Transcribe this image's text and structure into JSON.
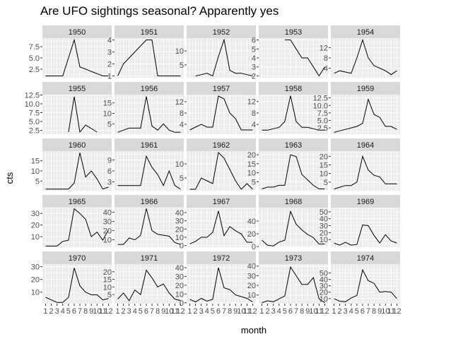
{
  "chart_data": {
    "type": "line",
    "title": "Are UFO sightings seasonal? Apparently yes",
    "xlabel": "month",
    "ylabel": "cts",
    "x_ticks": [
      1,
      2,
      3,
      4,
      5,
      6,
      7,
      8,
      9,
      10,
      11,
      12
    ],
    "x_tick_labels": [
      "1",
      "2",
      "3",
      "4",
      "5",
      "6",
      "7",
      "8",
      "9",
      "10",
      "11",
      "12"
    ],
    "xlim": [
      0.45,
      12.55
    ],
    "grid": true,
    "facet_by": "year",
    "layout": {
      "rows": 5,
      "cols": 5
    },
    "panels": [
      {
        "label": "1950",
        "y_ticks": [
          2.5,
          5.0,
          7.5
        ],
        "y_tick_labels": [
          "2.5",
          "5.0",
          "7.5"
        ],
        "ylim": [
          0.6,
          9.4
        ],
        "x": [
          1,
          2,
          3,
          4,
          5,
          6,
          7,
          8,
          9,
          10,
          11,
          12
        ],
        "y": [
          1,
          1,
          1,
          1,
          5,
          9,
          3,
          2.5,
          2,
          1.5,
          1,
          1
        ]
      },
      {
        "label": "1951",
        "y_ticks": [
          1,
          2,
          3,
          4
        ],
        "y_tick_labels": [
          "1",
          "2",
          "3",
          "4"
        ],
        "ylim": [
          0.85,
          4.15
        ],
        "x": [
          1,
          2,
          3,
          4,
          5,
          6,
          7,
          8,
          9,
          10,
          11,
          12
        ],
        "y": [
          1,
          2,
          2.5,
          3,
          3.5,
          4,
          4,
          1,
          1,
          1,
          1,
          1
        ]
      },
      {
        "label": "1952",
        "y_ticks": [
          5,
          10
        ],
        "y_tick_labels": [
          "5",
          "10"
        ],
        "ylim": [
          0.4,
          14.6
        ],
        "x": [
          2,
          3,
          4,
          5,
          6,
          7,
          8,
          9,
          10,
          11,
          12
        ],
        "y": [
          1,
          1.5,
          2,
          1,
          8,
          14,
          3,
          2,
          2,
          1.5,
          1
        ]
      },
      {
        "label": "1953",
        "y_ticks": [
          2,
          3,
          4,
          5,
          6
        ],
        "y_tick_labels": [
          "2",
          "3",
          "4",
          "5",
          "6"
        ],
        "ylim": [
          1.8,
          6.2
        ],
        "x": [
          5,
          6,
          7,
          8,
          9,
          10,
          11,
          12
        ],
        "y": [
          6,
          6,
          5,
          4,
          4,
          3,
          2,
          3
        ]
      },
      {
        "label": "1954",
        "y_ticks": [
          4,
          8,
          12
        ],
        "y_tick_labels": [
          "4",
          "8",
          "12"
        ],
        "ylim": [
          0.3,
          15.7
        ],
        "x": [
          1,
          2,
          3,
          4,
          5,
          6,
          7,
          8,
          9,
          10,
          11,
          12
        ],
        "y": [
          2,
          3,
          2.5,
          2,
          8,
          15,
          8,
          5,
          4,
          3,
          1.5,
          3
        ]
      },
      {
        "label": "1955",
        "y_ticks": [
          2.5,
          5.0,
          7.5,
          10.0,
          12.5
        ],
        "y_tick_labels": [
          "2.5",
          "5.0",
          "7.5",
          "10.0",
          "12.5"
        ],
        "ylim": [
          1.4,
          12.6
        ],
        "x": [
          5,
          6,
          7,
          8,
          9,
          10
        ],
        "y": [
          2,
          12,
          2,
          4,
          3,
          2
        ]
      },
      {
        "label": "1956",
        "y_ticks": [
          5,
          10,
          15
        ],
        "y_tick_labels": [
          "5",
          "10",
          "15"
        ],
        "ylim": [
          0.1,
          18.9
        ],
        "x": [
          1,
          2,
          3,
          4,
          5,
          6,
          7,
          8,
          9,
          10,
          11,
          12
        ],
        "y": [
          1,
          2,
          3,
          3,
          3,
          18,
          4,
          2,
          5,
          2,
          1,
          1
        ]
      },
      {
        "label": "1957",
        "y_ticks": [
          4,
          8,
          12
        ],
        "y_tick_labels": [
          "4",
          "8",
          "12"
        ],
        "ylim": [
          0.5,
          14.5
        ],
        "x": [
          1,
          2,
          3,
          4,
          5,
          6,
          7,
          8,
          9,
          10,
          11,
          12
        ],
        "y": [
          2,
          3,
          4,
          3,
          3,
          14,
          13,
          8,
          6,
          2,
          2,
          2
        ]
      },
      {
        "label": "1958",
        "y_ticks": [
          4,
          8,
          12
        ],
        "y_tick_labels": [
          "4",
          "8",
          "12"
        ],
        "ylim": [
          0.6,
          14.4
        ],
        "x": [
          1,
          2,
          3,
          4,
          5,
          6,
          7,
          8,
          9,
          10,
          11,
          12
        ],
        "y": [
          2,
          2,
          2.5,
          3,
          5,
          14,
          5,
          3,
          3,
          2.5,
          2,
          2
        ]
      },
      {
        "label": "1959",
        "y_ticks": [
          2.5,
          5.0,
          7.5,
          10.0,
          12.5
        ],
        "y_tick_labels": [
          "2.5",
          "5.0",
          "7.5",
          "10.0",
          "12.5"
        ],
        "ylim": [
          0.4,
          13.6
        ],
        "x": [
          1,
          2,
          3,
          4,
          5,
          6,
          7,
          8,
          9,
          10,
          11,
          12
        ],
        "y": [
          1,
          1.5,
          2,
          2.5,
          3,
          4,
          12,
          7,
          6,
          3,
          3,
          2
        ]
      },
      {
        "label": "1960",
        "y_ticks": [
          5,
          10,
          15
        ],
        "y_tick_labels": [
          "5",
          "10",
          "15"
        ],
        "ylim": [
          0.2,
          19.8
        ],
        "x": [
          1,
          2,
          3,
          4,
          5,
          6,
          7,
          8,
          9,
          10,
          11,
          12
        ],
        "y": [
          1,
          1,
          1,
          1,
          1,
          4,
          19,
          7,
          10,
          6,
          1,
          2
        ]
      },
      {
        "label": "1961",
        "y_ticks": [
          3,
          6,
          9
        ],
        "y_tick_labels": [
          "3",
          "6",
          "9"
        ],
        "ylim": [
          0.6,
          11.4
        ],
        "x": [
          1,
          2,
          3,
          4,
          5,
          6,
          7,
          8,
          9,
          10,
          11,
          12
        ],
        "y": [
          2,
          2,
          2,
          2,
          2,
          10,
          7,
          5,
          2,
          6,
          2,
          1
        ]
      },
      {
        "label": "1962",
        "y_ticks": [
          5,
          10
        ],
        "y_tick_labels": [
          "5",
          "10"
        ],
        "ylim": [
          0.5,
          14.5
        ],
        "x": [
          1,
          2,
          3,
          4,
          5,
          6,
          7,
          8,
          9,
          10,
          11,
          12
        ],
        "y": [
          1,
          1,
          5,
          4,
          3,
          14,
          12,
          8,
          4,
          1,
          3,
          1
        ]
      },
      {
        "label": "1963",
        "y_ticks": [
          5,
          10,
          15,
          20
        ],
        "y_tick_labels": [
          "5",
          "10",
          "15",
          "20"
        ],
        "ylim": [
          0,
          22
        ]
      },
      {
        "label": "1964",
        "y_ticks": [
          5,
          10,
          15,
          20
        ],
        "y_tick_labels": [
          "5",
          "10",
          "15",
          "20"
        ],
        "ylim": [
          0,
          23
        ]
      },
      {
        "label": "1965",
        "y_ticks": [
          10,
          20,
          30
        ],
        "y_tick_labels": [
          "10",
          "20",
          "30"
        ],
        "ylim": [
          1,
          35
        ]
      },
      {
        "label": "1966",
        "y_ticks": [
          10,
          20,
          30,
          40
        ],
        "y_tick_labels": [
          "10",
          "20",
          "30",
          "40"
        ],
        "ylim": [
          2,
          45
        ]
      },
      {
        "label": "1967",
        "y_ticks": [
          0,
          10,
          20,
          30,
          40
        ],
        "y_tick_labels": [
          "0",
          "10",
          "20",
          "30",
          "40"
        ],
        "ylim": [
          -2,
          46
        ]
      },
      {
        "label": "1968",
        "y_ticks": [
          0,
          20,
          40
        ],
        "y_tick_labels": [
          "0",
          "20",
          "40"
        ],
        "ylim": [
          -1,
          61
        ]
      },
      {
        "label": "1969",
        "y_ticks": [
          10,
          20,
          30,
          40,
          50
        ],
        "y_tick_labels": [
          "10",
          "20",
          "30",
          "40",
          "50"
        ],
        "ylim": [
          -1,
          56
        ]
      },
      {
        "label": "1970",
        "y_ticks": [
          10,
          20,
          30
        ],
        "y_tick_labels": [
          "10",
          "20",
          "30"
        ],
        "ylim": [
          1,
          32
        ]
      },
      {
        "label": "1971",
        "y_ticks": [
          5,
          10,
          15,
          20
        ],
        "y_tick_labels": [
          "5",
          "10",
          "15",
          "20"
        ],
        "ylim": [
          -1,
          25
        ]
      },
      {
        "label": "1972",
        "y_ticks": [
          0,
          10,
          20,
          30,
          40
        ],
        "y_tick_labels": [
          "0",
          "10",
          "20",
          "30",
          "40"
        ],
        "ylim": [
          -1,
          44
        ]
      },
      {
        "label": "1973",
        "y_ticks": [
          10,
          20,
          30,
          40
        ],
        "y_tick_labels": [
          "10",
          "20",
          "30",
          "40"
        ],
        "ylim": [
          1,
          42
        ]
      },
      {
        "label": "1974",
        "y_ticks": [
          10,
          20,
          30,
          40,
          50
        ],
        "y_tick_labels": [
          "10",
          "20",
          "30",
          "40",
          "50"
        ],
        "ylim": [
          2,
          64
        ]
      }
    ]
  }
}
